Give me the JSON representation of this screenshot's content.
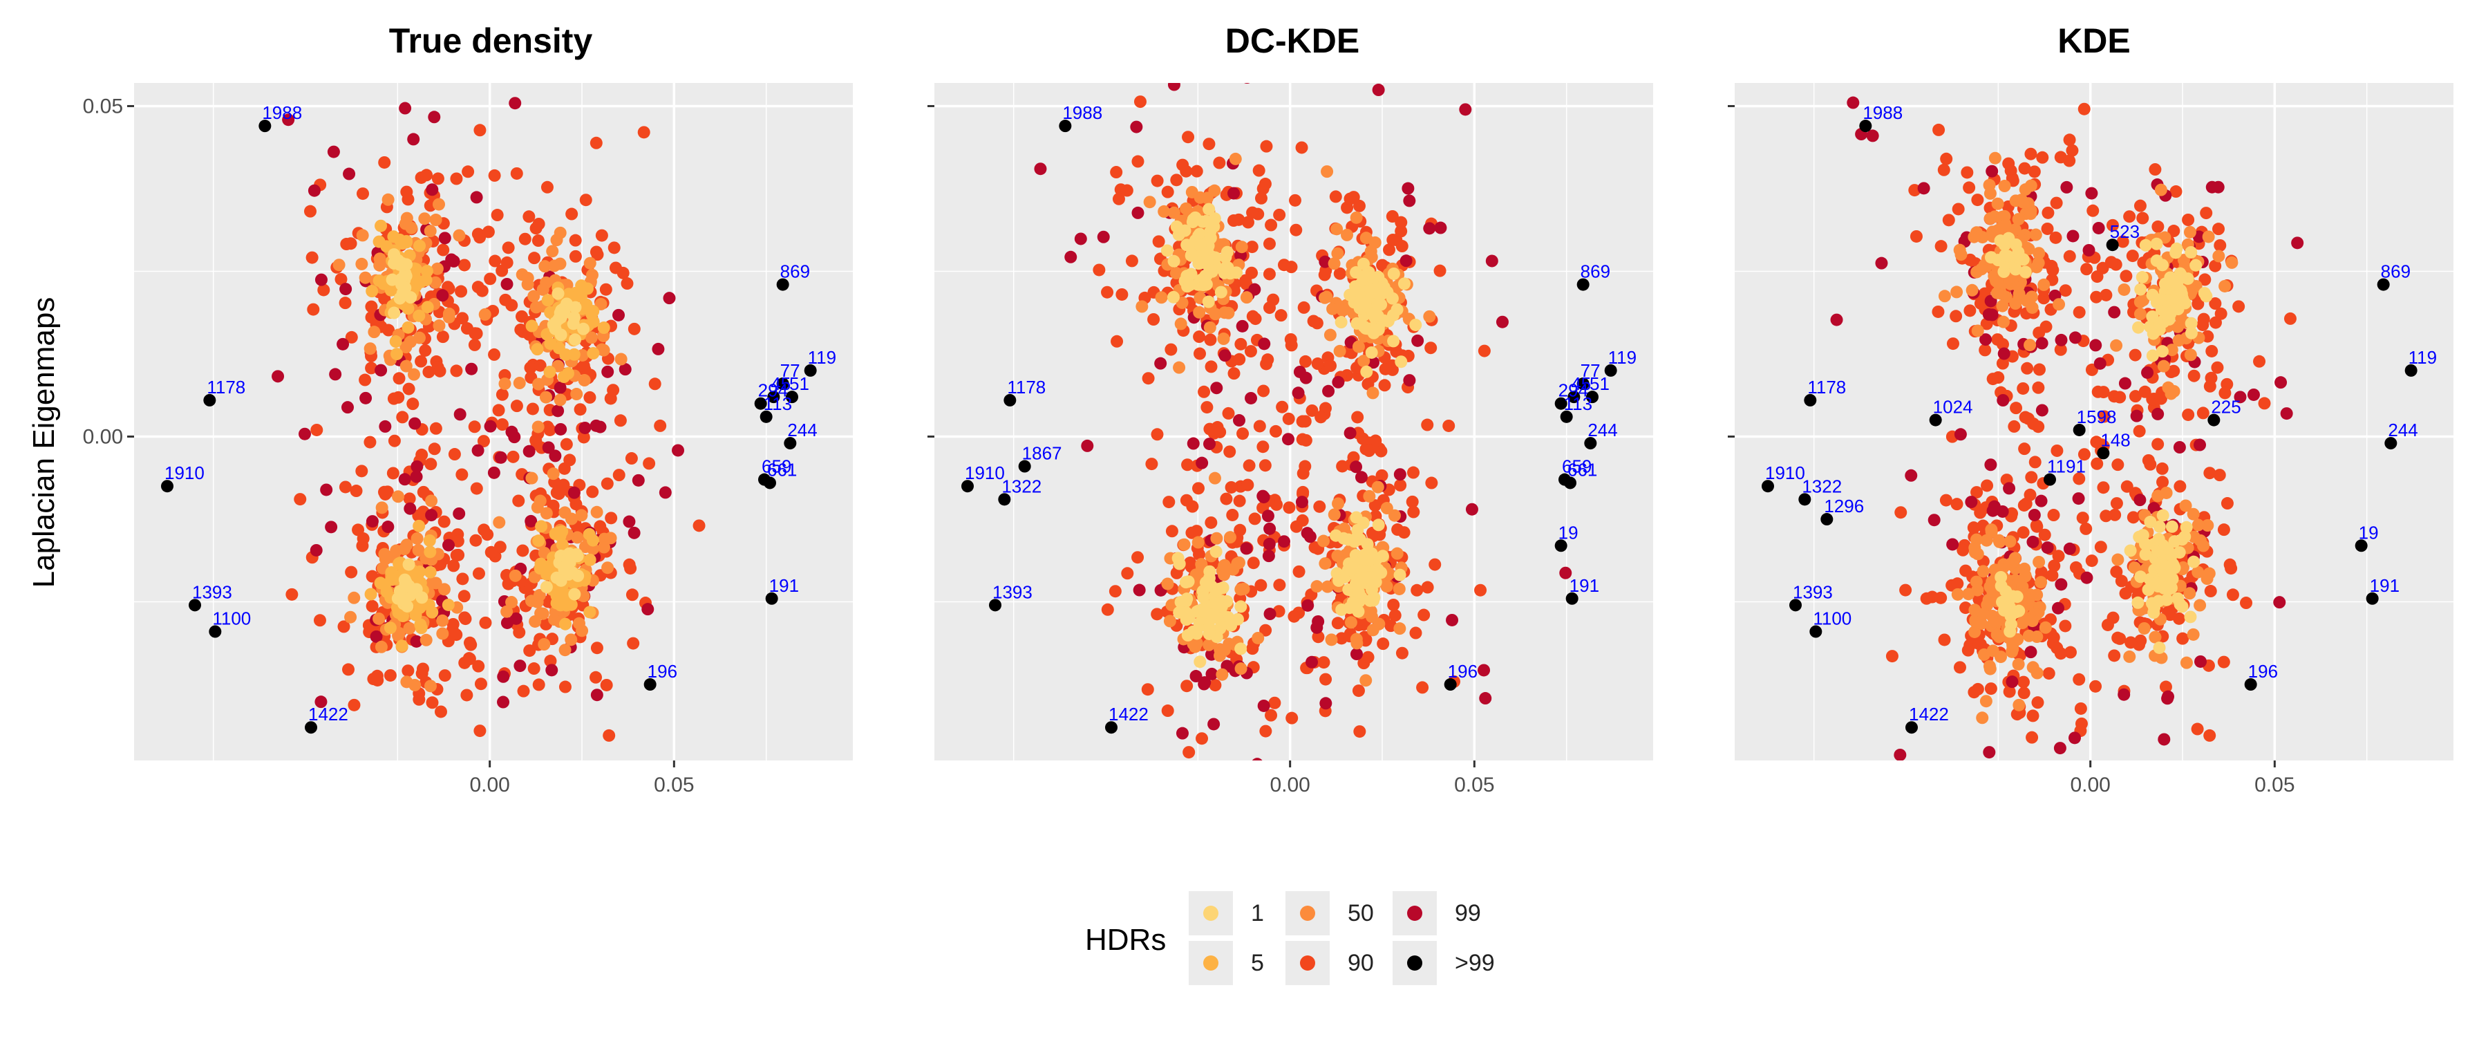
{
  "figure": {
    "ylabel": "Laplacian Eigenmaps",
    "legend_title": "HDRs"
  },
  "legend": [
    {
      "label": "1",
      "color": "#FDD575"
    },
    {
      "label": "5",
      "color": "#FDB244"
    },
    {
      "label": "50",
      "color": "#FC8B3B"
    },
    {
      "label": "90",
      "color": "#F2471D"
    },
    {
      "label": "99",
      "color": "#B8082A"
    },
    {
      "label": ">99",
      "color": "#000000"
    }
  ],
  "colors": {
    "panel_bg": "#EBEBEB",
    "grid": "#FFFFFF",
    "outlier_label": "#0000FF"
  },
  "chart_data": [
    {
      "type": "scatter",
      "title": "True density",
      "xlabel": "",
      "ylabel": "Laplacian Eigenmaps",
      "x_ticks": [
        "0.00",
        "0.05"
      ],
      "y_ticks": [
        "0.00",
        "0.05"
      ],
      "xlim": [
        -0.0965,
        0.0985
      ],
      "ylim": [
        -0.049,
        0.0535
      ],
      "grid": true,
      "legend_position": "bottom",
      "clusters": [
        {
          "x": -0.0235,
          "y": 0.0238,
          "hdr": "5"
        },
        {
          "x": 0.0205,
          "y": 0.0176,
          "hdr": "5"
        },
        {
          "x": -0.0225,
          "y": -0.024,
          "hdr": "5"
        },
        {
          "x": 0.02,
          "y": -0.02,
          "hdr": "5"
        }
      ],
      "outliers": [
        {
          "label": "1988",
          "x": -0.061,
          "y": 0.047
        },
        {
          "label": "869",
          "x": 0.0795,
          "y": 0.023
        },
        {
          "label": "119",
          "x": 0.087,
          "y": 0.01
        },
        {
          "label": "1178",
          "x": -0.076,
          "y": 0.0055
        },
        {
          "label": "77",
          "x": 0.0795,
          "y": 0.008
        },
        {
          "label": "294",
          "x": 0.0735,
          "y": 0.005
        },
        {
          "label": "45",
          "x": 0.077,
          "y": 0.006
        },
        {
          "label": "51",
          "x": 0.082,
          "y": 0.006
        },
        {
          "label": "113",
          "x": 0.075,
          "y": 0.003
        },
        {
          "label": "244",
          "x": 0.0815,
          "y": -0.001
        },
        {
          "label": "1910",
          "x": -0.0875,
          "y": -0.0075
        },
        {
          "label": "659",
          "x": 0.0745,
          "y": -0.0065
        },
        {
          "label": "661",
          "x": 0.076,
          "y": -0.007
        },
        {
          "label": "1393",
          "x": -0.08,
          "y": -0.0255
        },
        {
          "label": "1100",
          "x": -0.0745,
          "y": -0.0295
        },
        {
          "label": "191",
          "x": 0.0765,
          "y": -0.0245
        },
        {
          "label": "196",
          "x": 0.0435,
          "y": -0.0375
        },
        {
          "label": "1422",
          "x": -0.0485,
          "y": -0.044
        }
      ]
    },
    {
      "type": "scatter",
      "title": "DC-KDE",
      "xlabel": "",
      "ylabel": "",
      "x_ticks": [
        "0.00",
        "0.05"
      ],
      "y_ticks": [
        "",
        ""
      ],
      "xlim": [
        -0.0965,
        0.0985
      ],
      "ylim": [
        -0.049,
        0.0535
      ],
      "grid": true,
      "legend_position": "bottom",
      "clusters": [
        {
          "x": -0.024,
          "y": 0.027,
          "hdr": "1"
        },
        {
          "x": 0.0215,
          "y": 0.0205,
          "hdr": "1"
        },
        {
          "x": -0.0225,
          "y": -0.026,
          "hdr": "1"
        },
        {
          "x": 0.02,
          "y": -0.02,
          "hdr": "1"
        }
      ],
      "outliers": [
        {
          "label": "1988",
          "x": -0.061,
          "y": 0.047
        },
        {
          "label": "869",
          "x": 0.0795,
          "y": 0.023
        },
        {
          "label": "119",
          "x": 0.087,
          "y": 0.01
        },
        {
          "label": "1178",
          "x": -0.076,
          "y": 0.0055
        },
        {
          "label": "77",
          "x": 0.0795,
          "y": 0.008
        },
        {
          "label": "294",
          "x": 0.0735,
          "y": 0.005
        },
        {
          "label": "45",
          "x": 0.077,
          "y": 0.006
        },
        {
          "label": "51",
          "x": 0.082,
          "y": 0.006
        },
        {
          "label": "113",
          "x": 0.075,
          "y": 0.003
        },
        {
          "label": "244",
          "x": 0.0815,
          "y": -0.001
        },
        {
          "label": "1910",
          "x": -0.0875,
          "y": -0.0075
        },
        {
          "label": "1867",
          "x": -0.072,
          "y": -0.0045
        },
        {
          "label": "1322",
          "x": -0.0775,
          "y": -0.0095
        },
        {
          "label": "659",
          "x": 0.0745,
          "y": -0.0065
        },
        {
          "label": "661",
          "x": 0.076,
          "y": -0.007
        },
        {
          "label": "19",
          "x": 0.0735,
          "y": -0.0165
        },
        {
          "label": "1393",
          "x": -0.08,
          "y": -0.0255
        },
        {
          "label": "191",
          "x": 0.0765,
          "y": -0.0245
        },
        {
          "label": "196",
          "x": 0.0435,
          "y": -0.0375
        },
        {
          "label": "1422",
          "x": -0.0485,
          "y": -0.044
        }
      ]
    },
    {
      "type": "scatter",
      "title": "KDE",
      "xlabel": "",
      "ylabel": "",
      "x_ticks": [
        "0.00",
        "0.05"
      ],
      "y_ticks": [
        "",
        ""
      ],
      "xlim": [
        -0.0965,
        0.0985
      ],
      "ylim": [
        -0.049,
        0.0535
      ],
      "grid": true,
      "legend_position": "bottom",
      "clusters": [
        {
          "x": -0.0225,
          "y": 0.027,
          "hdr": "50"
        },
        {
          "x": 0.0215,
          "y": 0.021,
          "hdr": "1"
        },
        {
          "x": -0.0225,
          "y": -0.026,
          "hdr": "50"
        },
        {
          "x": 0.02,
          "y": -0.02,
          "hdr": "1"
        }
      ],
      "outliers": [
        {
          "label": "1988",
          "x": -0.061,
          "y": 0.047
        },
        {
          "label": "523",
          "x": 0.006,
          "y": 0.029
        },
        {
          "label": "869",
          "x": 0.0795,
          "y": 0.023
        },
        {
          "label": "119",
          "x": 0.087,
          "y": 0.01
        },
        {
          "label": "1178",
          "x": -0.076,
          "y": 0.0055
        },
        {
          "label": "1024",
          "x": -0.042,
          "y": 0.0025
        },
        {
          "label": "1598",
          "x": -0.003,
          "y": 0.001
        },
        {
          "label": "225",
          "x": 0.0335,
          "y": 0.0025
        },
        {
          "label": "148",
          "x": 0.0035,
          "y": -0.0025
        },
        {
          "label": "244",
          "x": 0.0815,
          "y": -0.001
        },
        {
          "label": "1191",
          "x": -0.011,
          "y": -0.0065
        },
        {
          "label": "1910",
          "x": -0.0875,
          "y": -0.0075
        },
        {
          "label": "1322",
          "x": -0.0775,
          "y": -0.0095
        },
        {
          "label": "1296",
          "x": -0.0715,
          "y": -0.0125
        },
        {
          "label": "19",
          "x": 0.0735,
          "y": -0.0165
        },
        {
          "label": "1393",
          "x": -0.08,
          "y": -0.0255
        },
        {
          "label": "1100",
          "x": -0.0745,
          "y": -0.0295
        },
        {
          "label": "191",
          "x": 0.0765,
          "y": -0.0245
        },
        {
          "label": "196",
          "x": 0.0435,
          "y": -0.0375
        },
        {
          "label": "1422",
          "x": -0.0485,
          "y": -0.044
        }
      ]
    }
  ]
}
